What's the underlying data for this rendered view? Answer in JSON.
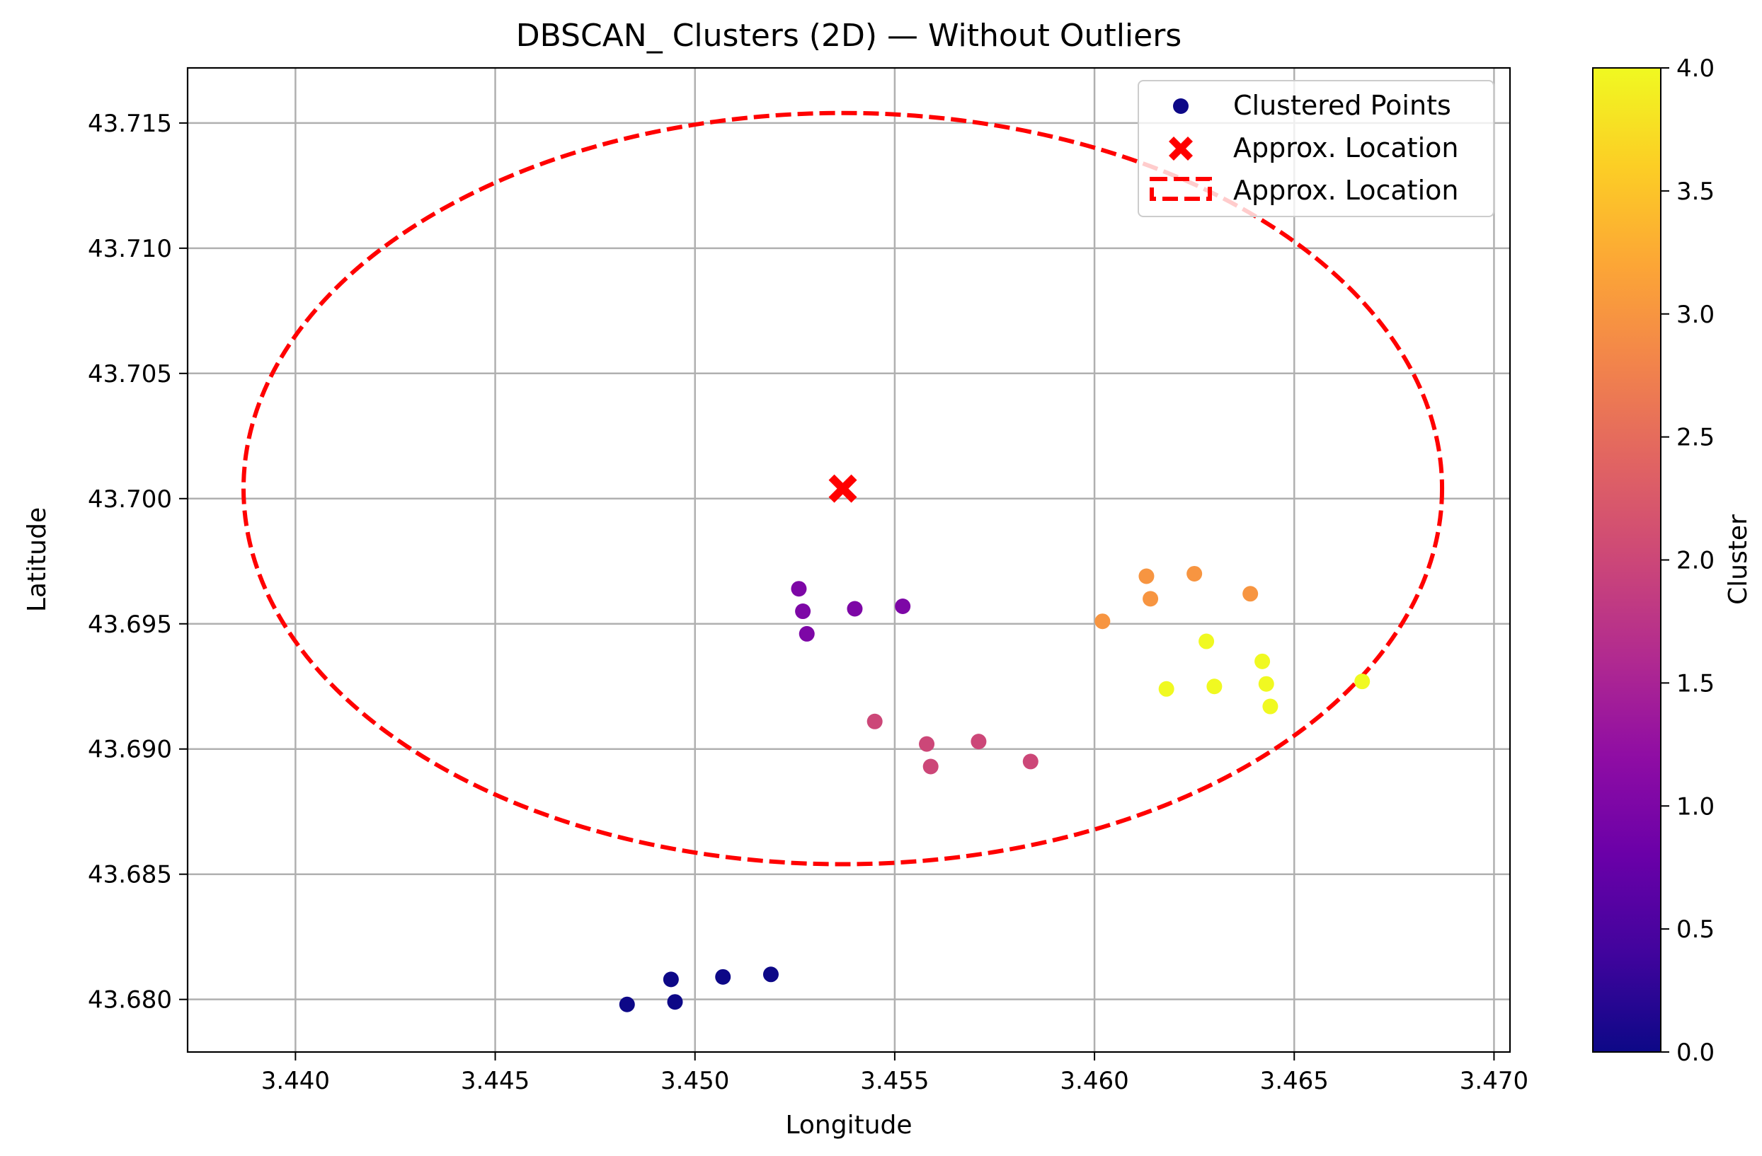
{
  "chart_data": {
    "type": "scatter",
    "title": "DBSCAN_ Clusters (2D) — Without Outliers",
    "xlabel": "Longitude",
    "ylabel": "Latitude",
    "xlim": [
      3.4373,
      3.4704
    ],
    "ylim": [
      43.6779,
      43.7172
    ],
    "xticks": [
      "3.440",
      "3.445",
      "3.450",
      "3.455",
      "3.460",
      "3.465",
      "3.470"
    ],
    "yticks": [
      "43.680",
      "43.685",
      "43.690",
      "43.695",
      "43.700",
      "43.705",
      "43.710",
      "43.715"
    ],
    "grid": true,
    "legend_position": "top-right",
    "legend": [
      "Clustered Points",
      "Approx. Location",
      "Approx. Location"
    ],
    "colorbar": {
      "label": "Cluster",
      "range": [
        0,
        4
      ],
      "ticks": [
        "0.0",
        "0.5",
        "1.0",
        "1.5",
        "2.0",
        "2.5",
        "3.0",
        "3.5",
        "4.0"
      ],
      "colormap": "plasma"
    },
    "points": [
      {
        "x": 3.4483,
        "y": 43.6798,
        "cluster": 0
      },
      {
        "x": 3.4494,
        "y": 43.6808,
        "cluster": 0
      },
      {
        "x": 3.4495,
        "y": 43.6799,
        "cluster": 0
      },
      {
        "x": 3.4507,
        "y": 43.6809,
        "cluster": 0
      },
      {
        "x": 3.4519,
        "y": 43.681,
        "cluster": 0
      },
      {
        "x": 3.4526,
        "y": 43.6964,
        "cluster": 1
      },
      {
        "x": 3.4527,
        "y": 43.6955,
        "cluster": 1
      },
      {
        "x": 3.4528,
        "y": 43.6946,
        "cluster": 1
      },
      {
        "x": 3.454,
        "y": 43.6956,
        "cluster": 1
      },
      {
        "x": 3.4552,
        "y": 43.6957,
        "cluster": 1
      },
      {
        "x": 3.4545,
        "y": 43.6911,
        "cluster": 2
      },
      {
        "x": 3.4558,
        "y": 43.6902,
        "cluster": 2
      },
      {
        "x": 3.4559,
        "y": 43.6893,
        "cluster": 2
      },
      {
        "x": 3.4571,
        "y": 43.6903,
        "cluster": 2
      },
      {
        "x": 3.4584,
        "y": 43.6895,
        "cluster": 2
      },
      {
        "x": 3.4602,
        "y": 43.6951,
        "cluster": 3
      },
      {
        "x": 3.4613,
        "y": 43.6969,
        "cluster": 3
      },
      {
        "x": 3.4614,
        "y": 43.696,
        "cluster": 3
      },
      {
        "x": 3.4625,
        "y": 43.697,
        "cluster": 3
      },
      {
        "x": 3.4639,
        "y": 43.6962,
        "cluster": 3
      },
      {
        "x": 3.4618,
        "y": 43.6924,
        "cluster": 4
      },
      {
        "x": 3.4628,
        "y": 43.6943,
        "cluster": 4
      },
      {
        "x": 3.463,
        "y": 43.6925,
        "cluster": 4
      },
      {
        "x": 3.4642,
        "y": 43.6935,
        "cluster": 4
      },
      {
        "x": 3.4643,
        "y": 43.6926,
        "cluster": 4
      },
      {
        "x": 3.4644,
        "y": 43.6917,
        "cluster": 4
      },
      {
        "x": 3.4667,
        "y": 43.6927,
        "cluster": 4
      }
    ],
    "approx_location": {
      "x": 3.4537,
      "y": 43.7004
    },
    "ellipse": {
      "cx": 3.4537,
      "cy": 43.7004,
      "rx": 0.015,
      "ry": 0.015
    }
  },
  "colors": {
    "marker": "#ff0000",
    "legend_points": "#0d0887",
    "grid": "#b0b0b0",
    "plasma_stops": [
      "#0d0887",
      "#41049d",
      "#6a00a8",
      "#8f0da4",
      "#b12a90",
      "#cc4778",
      "#e16462",
      "#f2844b",
      "#fca636",
      "#fcce25",
      "#f0f921"
    ]
  }
}
